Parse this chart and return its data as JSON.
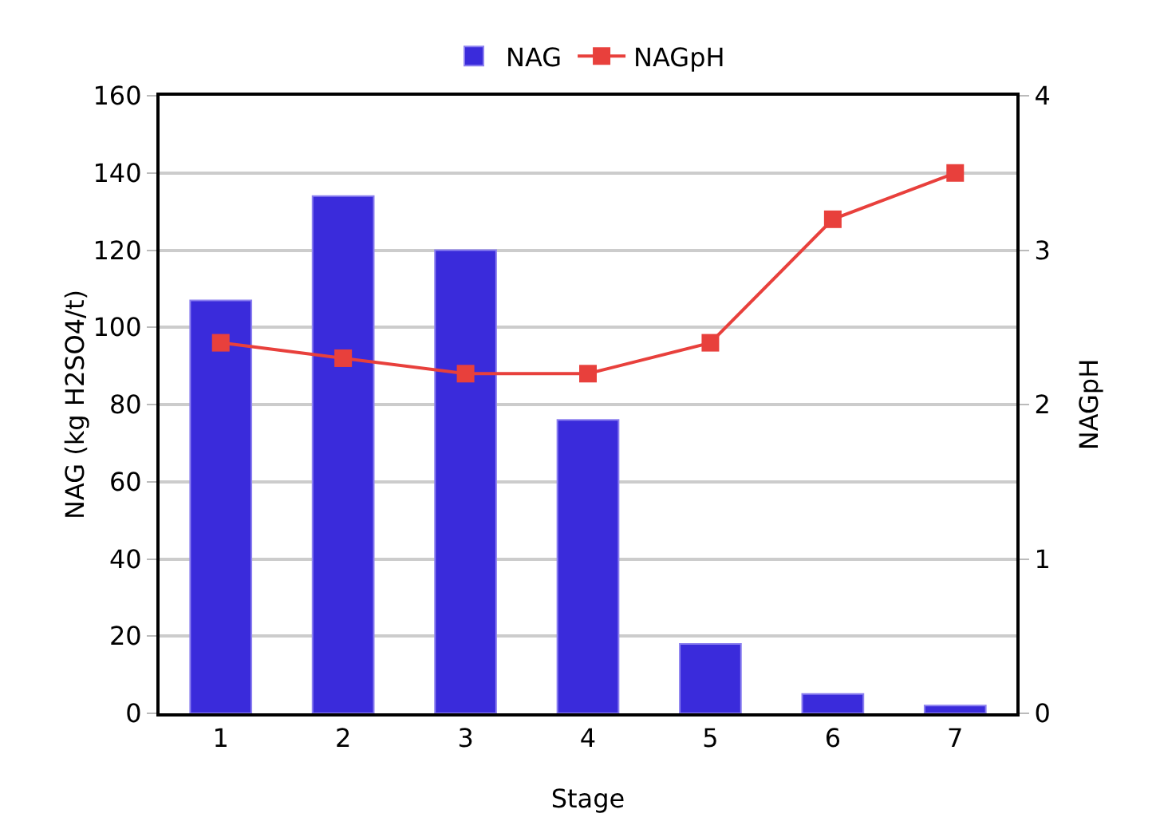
{
  "chart_data": {
    "type": "bar",
    "xlabel": "Stage",
    "ylabel": "NAG (kg H2SO4/t)",
    "y2label": "NAGpH",
    "categories": [
      "1",
      "2",
      "3",
      "4",
      "5",
      "6",
      "7"
    ],
    "series": [
      {
        "name": "NAG",
        "color": "#3a2bdb",
        "values": [
          107,
          134,
          120,
          76,
          18,
          5,
          2
        ]
      },
      {
        "name": "NAGpH",
        "type": "line",
        "axis": "y2",
        "color": "#e8403c",
        "marker": "square",
        "values": [
          2.4,
          2.3,
          2.2,
          2.2,
          2.4,
          3.2,
          3.5
        ]
      }
    ],
    "ylim": [
      0,
      160
    ],
    "yticks": [
      0,
      20,
      40,
      60,
      80,
      100,
      120,
      140,
      160
    ],
    "y2lim": [
      0,
      4
    ],
    "y2ticks": [
      0,
      1,
      2,
      3,
      4
    ],
    "grid": "y",
    "legend": "top"
  }
}
